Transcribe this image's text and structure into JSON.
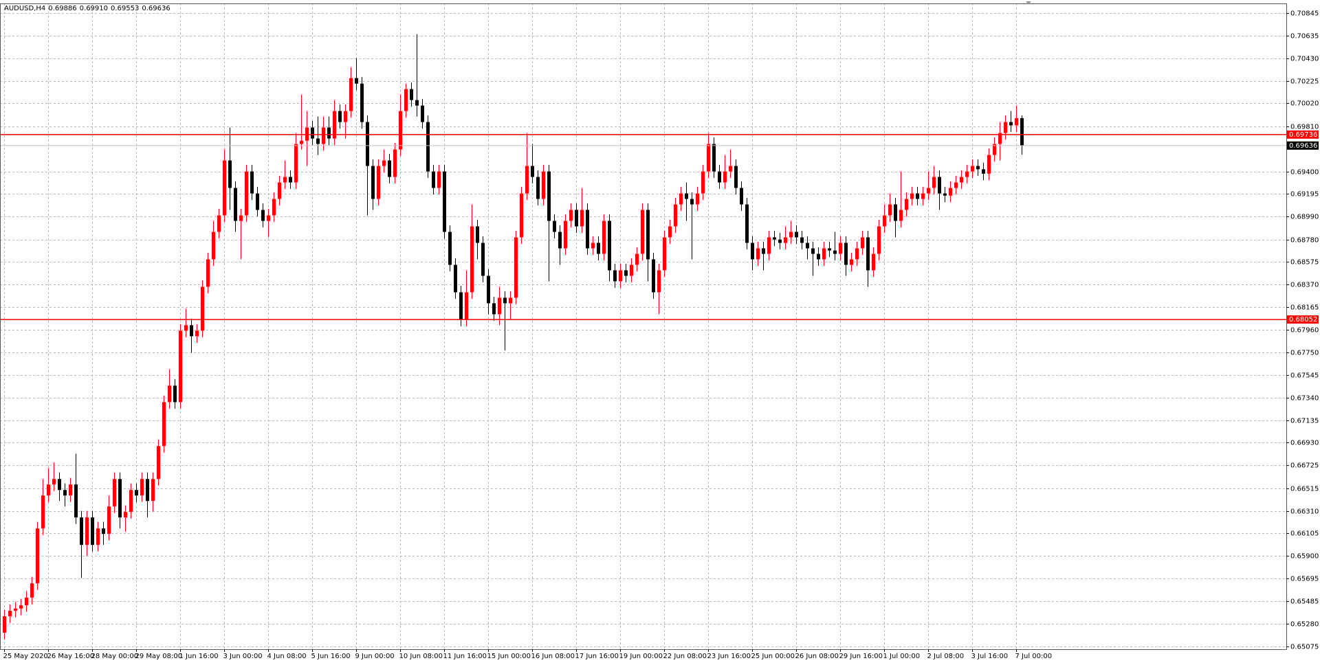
{
  "chart_data": {
    "type": "candlestick",
    "title": "AUDUSD,H4",
    "ohlc_value_labels": [
      "0.69886",
      "0.69910",
      "0.69553",
      "0.69636"
    ],
    "categories": [
      "25 May 2020",
      null,
      null,
      null,
      null,
      null,
      null,
      null,
      "26 May 16:00",
      null,
      null,
      null,
      null,
      null,
      null,
      null,
      "28 May 00:00",
      null,
      null,
      null,
      null,
      null,
      null,
      null,
      "29 May 08:00",
      null,
      null,
      null,
      null,
      null,
      null,
      null,
      "1 Jun 16:00",
      null,
      null,
      null,
      null,
      null,
      null,
      null,
      "3 Jun 00:00",
      null,
      null,
      null,
      null,
      null,
      null,
      null,
      "4 Jun 08:00",
      null,
      null,
      null,
      null,
      null,
      null,
      null,
      "5 Jun 16:00",
      null,
      null,
      null,
      null,
      null,
      null,
      null,
      "9 Jun 00:00",
      null,
      null,
      null,
      null,
      null,
      null,
      null,
      "10 Jun 08:00",
      null,
      null,
      null,
      null,
      null,
      null,
      null,
      "11 Jun 16:00",
      null,
      null,
      null,
      null,
      null,
      null,
      null,
      "15 Jun 00:00",
      null,
      null,
      null,
      null,
      null,
      null,
      null,
      "16 Jun 08:00",
      null,
      null,
      null,
      null,
      null,
      null,
      null,
      "17 Jun 16:00",
      null,
      null,
      null,
      null,
      null,
      null,
      null,
      "19 Jun 00:00",
      null,
      null,
      null,
      null,
      null,
      null,
      null,
      "22 Jun 08:00",
      null,
      null,
      null,
      null,
      null,
      null,
      null,
      "23 Jun 16:00",
      null,
      null,
      null,
      null,
      null,
      null,
      null,
      "25 Jun 00:00",
      null,
      null,
      null,
      null,
      null,
      null,
      null,
      "26 Jun 08:00",
      null,
      null,
      null,
      null,
      null,
      null,
      null,
      "29 Jun 16:00",
      null,
      null,
      null,
      null,
      null,
      null,
      null,
      "1 Jul 00:00",
      null,
      null,
      null,
      null,
      null,
      null,
      null,
      "2 Jul 08:00",
      null,
      null,
      null,
      null,
      null,
      null,
      null,
      "3 Jul 16:00",
      null,
      null,
      null,
      null,
      null,
      null,
      null,
      "7 Jul 00:00",
      null
    ],
    "open": [
      0.652,
      0.6535,
      0.654,
      0.6542,
      0.6545,
      0.6552,
      0.6565,
      0.6615,
      0.6645,
      0.6655,
      0.666,
      0.665,
      0.6645,
      0.6655,
      0.6625,
      0.66,
      0.6625,
      0.66,
      0.6615,
      0.661,
      0.6635,
      0.666,
      0.6625,
      0.663,
      0.665,
      0.6645,
      0.666,
      0.664,
      0.666,
      0.669,
      0.673,
      0.6745,
      0.673,
      0.6795,
      0.68,
      0.679,
      0.6795,
      0.6835,
      0.686,
      0.6885,
      0.69,
      0.695,
      0.6925,
      0.6895,
      0.69,
      0.694,
      0.692,
      0.6905,
      0.6895,
      0.69,
      0.6915,
      0.693,
      0.6935,
      0.693,
      0.6965,
      0.6968,
      0.698,
      0.697,
      0.6965,
      0.698,
      0.697,
      0.6995,
      0.6985,
      0.6995,
      0.7025,
      0.702,
      0.6985,
      0.6945,
      0.6915,
      0.6945,
      0.695,
      0.6935,
      0.696,
      0.6995,
      0.7015,
      0.7005,
      0.7,
      0.6985,
      0.694,
      0.6925,
      0.694,
      0.6885,
      0.6855,
      0.683,
      0.6805,
      0.683,
      0.689,
      0.6875,
      0.6845,
      0.682,
      0.681,
      0.6825,
      0.682,
      0.6825,
      0.688,
      0.692,
      0.6945,
      0.6935,
      0.6915,
      0.694,
      0.6895,
      0.6885,
      0.687,
      0.6895,
      0.6905,
      0.689,
      0.6905,
      0.687,
      0.6875,
      0.6865,
      0.6895,
      0.685,
      0.684,
      0.685,
      0.6845,
      0.6855,
      0.6865,
      0.6905,
      0.686,
      0.683,
      0.685,
      0.688,
      0.689,
      0.691,
      0.692,
      0.6915,
      0.691,
      0.692,
      0.694,
      0.6965,
      0.694,
      0.693,
      0.694,
      0.6945,
      0.6925,
      0.691,
      0.6875,
      0.686,
      0.687,
      0.6865,
      0.688,
      0.6878,
      0.6875,
      0.688,
      0.6885,
      0.688,
      0.6875,
      0.687,
      0.6865,
      0.686,
      0.687,
      0.6868,
      0.6865,
      0.6875,
      0.6855,
      0.686,
      0.687,
      0.688,
      0.685,
      0.6865,
      0.689,
      0.69,
      0.691,
      0.6895,
      0.6905,
      0.6915,
      0.692,
      0.6915,
      0.692,
      0.6925,
      0.6935,
      0.692,
      0.6918,
      0.6925,
      0.693,
      0.6935,
      0.694,
      0.6945,
      0.6942,
      0.6938,
      0.6955,
      0.6965,
      0.6975,
      0.6985,
      0.6982,
      0.69886
    ],
    "high": [
      0.6541,
      0.6546,
      0.6548,
      0.6551,
      0.6558,
      0.6571,
      0.6621,
      0.666,
      0.667,
      0.6675,
      0.6666,
      0.6656,
      0.6661,
      0.6683,
      0.6631,
      0.6631,
      0.6631,
      0.6621,
      0.6621,
      0.6645,
      0.6666,
      0.6666,
      0.6636,
      0.6656,
      0.6656,
      0.6666,
      0.6666,
      0.6666,
      0.6696,
      0.6736,
      0.676,
      0.6751,
      0.6801,
      0.6815,
      0.6806,
      0.6801,
      0.6841,
      0.6866,
      0.6895,
      0.6906,
      0.696,
      0.698,
      0.6931,
      0.6906,
      0.6946,
      0.6946,
      0.6926,
      0.6911,
      0.6906,
      0.6921,
      0.6936,
      0.695,
      0.6941,
      0.6975,
      0.701,
      0.6995,
      0.6986,
      0.699,
      0.699,
      0.699,
      0.7005,
      0.7001,
      0.7001,
      0.7035,
      0.7043,
      0.7026,
      0.6991,
      0.6951,
      0.6951,
      0.696,
      0.6956,
      0.6966,
      0.701,
      0.702,
      0.7021,
      0.7065,
      0.7006,
      0.6991,
      0.6946,
      0.6946,
      0.6946,
      0.6891,
      0.6861,
      0.6836,
      0.685,
      0.691,
      0.6896,
      0.6881,
      0.6851,
      0.6826,
      0.6835,
      0.6831,
      0.6831,
      0.6886,
      0.6926,
      0.6975,
      0.6965,
      0.6941,
      0.6946,
      0.6946,
      0.6901,
      0.6891,
      0.6901,
      0.6911,
      0.6911,
      0.6925,
      0.6911,
      0.6881,
      0.6881,
      0.6901,
      0.6901,
      0.6856,
      0.6856,
      0.6856,
      0.6861,
      0.6871,
      0.6911,
      0.6911,
      0.6866,
      0.6856,
      0.6886,
      0.6896,
      0.6916,
      0.6926,
      0.693,
      0.6921,
      0.6926,
      0.6946,
      0.6975,
      0.6971,
      0.6946,
      0.6955,
      0.696,
      0.6951,
      0.6931,
      0.6916,
      0.6881,
      0.6876,
      0.6876,
      0.6886,
      0.6886,
      0.6884,
      0.689,
      0.6895,
      0.6891,
      0.6886,
      0.6881,
      0.6876,
      0.6871,
      0.6876,
      0.6876,
      0.6885,
      0.6881,
      0.6881,
      0.6866,
      0.6876,
      0.6886,
      0.6886,
      0.6871,
      0.6896,
      0.691,
      0.692,
      0.6916,
      0.694,
      0.6921,
      0.6926,
      0.6926,
      0.6926,
      0.694,
      0.6945,
      0.6941,
      0.6926,
      0.6931,
      0.6936,
      0.6941,
      0.6946,
      0.6951,
      0.6951,
      0.6948,
      0.6961,
      0.6971,
      0.6985,
      0.6991,
      0.6995,
      0.7,
      0.6991
    ],
    "low": [
      0.6514,
      0.6529,
      0.6534,
      0.6536,
      0.6539,
      0.6546,
      0.6559,
      0.6609,
      0.6639,
      0.6649,
      0.664,
      0.6635,
      0.6639,
      0.6619,
      0.657,
      0.659,
      0.6594,
      0.6594,
      0.66,
      0.6604,
      0.6629,
      0.6615,
      0.6612,
      0.6624,
      0.6639,
      0.6639,
      0.6625,
      0.663,
      0.6654,
      0.6684,
      0.6724,
      0.6724,
      0.6724,
      0.6789,
      0.6775,
      0.6784,
      0.6789,
      0.6829,
      0.6854,
      0.6879,
      0.6894,
      0.6905,
      0.6885,
      0.686,
      0.6894,
      0.6914,
      0.6899,
      0.6889,
      0.688,
      0.6894,
      0.6909,
      0.6924,
      0.6924,
      0.6924,
      0.696,
      0.6945,
      0.6964,
      0.6955,
      0.6959,
      0.6964,
      0.6964,
      0.6979,
      0.697,
      0.6989,
      0.7014,
      0.6979,
      0.69,
      0.6905,
      0.6909,
      0.6939,
      0.6929,
      0.6929,
      0.6954,
      0.6989,
      0.6999,
      0.699,
      0.6979,
      0.6934,
      0.6919,
      0.6919,
      0.6879,
      0.6849,
      0.6824,
      0.6799,
      0.6799,
      0.6824,
      0.686,
      0.6839,
      0.681,
      0.6804,
      0.68,
      0.6777,
      0.6805,
      0.6819,
      0.6874,
      0.6914,
      0.6929,
      0.6909,
      0.6909,
      0.684,
      0.6879,
      0.6855,
      0.6864,
      0.6889,
      0.6884,
      0.6884,
      0.6864,
      0.6864,
      0.6859,
      0.6859,
      0.684,
      0.6834,
      0.6834,
      0.6839,
      0.6839,
      0.6849,
      0.6859,
      0.684,
      0.6824,
      0.681,
      0.6844,
      0.6874,
      0.6884,
      0.6904,
      0.6895,
      0.686,
      0.6904,
      0.6914,
      0.6934,
      0.6934,
      0.6924,
      0.6924,
      0.6934,
      0.6919,
      0.6904,
      0.6869,
      0.685,
      0.6854,
      0.685,
      0.6859,
      0.6872,
      0.6869,
      0.6869,
      0.6874,
      0.6874,
      0.6869,
      0.686,
      0.6845,
      0.6854,
      0.6854,
      0.6862,
      0.6859,
      0.6859,
      0.6845,
      0.6849,
      0.6854,
      0.6864,
      0.6835,
      0.6844,
      0.6859,
      0.6884,
      0.6894,
      0.688,
      0.6889,
      0.6899,
      0.6909,
      0.6909,
      0.6909,
      0.6914,
      0.6919,
      0.6905,
      0.6912,
      0.6912,
      0.6919,
      0.6924,
      0.6929,
      0.6934,
      0.6936,
      0.6932,
      0.6932,
      0.6949,
      0.695,
      0.6969,
      0.6976,
      0.6976,
      0.69553
    ],
    "close": [
      0.6535,
      0.654,
      0.6542,
      0.6545,
      0.6552,
      0.6565,
      0.6615,
      0.6645,
      0.6655,
      0.666,
      0.665,
      0.6645,
      0.6655,
      0.6625,
      0.66,
      0.6625,
      0.66,
      0.6615,
      0.661,
      0.6635,
      0.666,
      0.6625,
      0.663,
      0.665,
      0.6645,
      0.666,
      0.664,
      0.666,
      0.669,
      0.673,
      0.6745,
      0.673,
      0.6795,
      0.68,
      0.679,
      0.6795,
      0.6835,
      0.686,
      0.6885,
      0.69,
      0.695,
      0.6925,
      0.6895,
      0.69,
      0.694,
      0.692,
      0.6905,
      0.6895,
      0.69,
      0.6915,
      0.693,
      0.6935,
      0.693,
      0.6965,
      0.6968,
      0.698,
      0.697,
      0.6965,
      0.698,
      0.697,
      0.6995,
      0.6985,
      0.6995,
      0.7025,
      0.702,
      0.6985,
      0.6945,
      0.6915,
      0.6945,
      0.695,
      0.6935,
      0.696,
      0.6995,
      0.7015,
      0.7005,
      0.7,
      0.6985,
      0.694,
      0.6925,
      0.694,
      0.6885,
      0.6855,
      0.683,
      0.6805,
      0.683,
      0.689,
      0.6875,
      0.6845,
      0.682,
      0.681,
      0.6825,
      0.682,
      0.6825,
      0.688,
      0.692,
      0.6945,
      0.6935,
      0.6915,
      0.694,
      0.6895,
      0.6885,
      0.687,
      0.6895,
      0.6905,
      0.689,
      0.6905,
      0.687,
      0.6875,
      0.6865,
      0.6895,
      0.685,
      0.684,
      0.685,
      0.6845,
      0.6855,
      0.6865,
      0.6905,
      0.686,
      0.683,
      0.685,
      0.688,
      0.689,
      0.691,
      0.692,
      0.6915,
      0.691,
      0.692,
      0.694,
      0.6965,
      0.694,
      0.693,
      0.694,
      0.6945,
      0.6925,
      0.691,
      0.6875,
      0.686,
      0.687,
      0.6865,
      0.688,
      0.6878,
      0.6875,
      0.688,
      0.6885,
      0.688,
      0.6875,
      0.687,
      0.6865,
      0.686,
      0.687,
      0.6868,
      0.6865,
      0.6875,
      0.6855,
      0.686,
      0.687,
      0.688,
      0.685,
      0.6865,
      0.689,
      0.69,
      0.691,
      0.6895,
      0.6905,
      0.6915,
      0.692,
      0.6915,
      0.692,
      0.6925,
      0.6935,
      0.692,
      0.6918,
      0.6925,
      0.693,
      0.6935,
      0.694,
      0.6945,
      0.6942,
      0.6938,
      0.6955,
      0.6965,
      0.6975,
      0.6985,
      0.6982,
      0.69886,
      0.69636
    ],
    "colors": {
      "up": "#ff0000",
      "down": "#000000"
    },
    "ylim": [
      0.6505,
      0.7093
    ],
    "yticks": [
      0.70845,
      0.70635,
      {
        "value": 0.7043,
        "label": "0.70430"
      },
      0.70225,
      {
        "value": 0.7002,
        "label": "0.70020"
      },
      {
        "value": 0.6981,
        "label": "0.69810"
      },
      {
        "value": 0.694,
        "label": "0.69400"
      },
      0.69195,
      {
        "value": 0.6899,
        "label": "0.68990"
      },
      {
        "value": 0.6878,
        "label": "0.68780"
      },
      0.68575,
      {
        "value": 0.6837,
        "label": "0.68370"
      },
      0.68165,
      {
        "value": 0.6796,
        "label": "0.67960"
      },
      {
        "value": 0.6775,
        "label": "0.67750"
      },
      0.67545,
      {
        "value": 0.6734,
        "label": "0.67340"
      },
      0.67135,
      {
        "value": 0.6693,
        "label": "0.66930"
      },
      0.66725,
      0.66515,
      {
        "value": 0.6631,
        "label": "0.66310"
      },
      0.66105,
      {
        "value": 0.659,
        "label": "0.65900"
      },
      0.65695,
      0.65485,
      {
        "value": 0.6528,
        "label": "0.65280"
      },
      0.65075
    ],
    "grid": true,
    "hlines": [
      {
        "value": 0.69736,
        "color": "#ff0000"
      },
      {
        "value": 0.68052,
        "color": "#ff0000"
      }
    ]
  }
}
